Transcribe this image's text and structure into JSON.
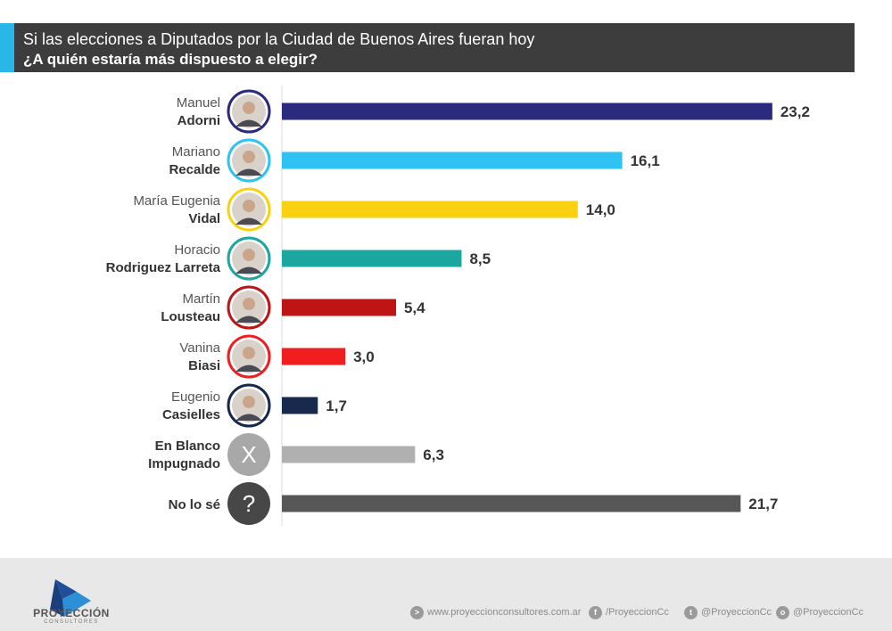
{
  "header": {
    "line1": "Si las elecciones a Diputados por la Ciudad de Buenos Aires fueran hoy",
    "line2": "¿A quién estaría más dispuesto a elegir?",
    "accent_color": "#29b6e8",
    "background_color": "#3d3d3d"
  },
  "chart_data": {
    "type": "bar",
    "orientation": "horizontal",
    "title": "Si las elecciones a Diputados por la Ciudad de Buenos Aires fueran hoy — ¿A quién estaría más dispuesto a elegir?",
    "xlabel": "",
    "ylabel": "",
    "xlim": [
      0,
      25
    ],
    "grid": false,
    "categories": [
      {
        "first": "Manuel",
        "last": "Adorni",
        "value": 23.2,
        "label": "23,2",
        "color": "#2a2a7e",
        "ring": "#2a2a7e",
        "icon": "avatar-adorni-icon"
      },
      {
        "first": "Mariano",
        "last": "Recalde",
        "value": 16.1,
        "label": "16,1",
        "color": "#2ec3f2",
        "ring": "#2ec3f2",
        "icon": "avatar-recalde-icon"
      },
      {
        "first": "María Eugenia",
        "last": "Vidal",
        "value": 14.0,
        "label": "14,0",
        "color": "#fad110",
        "ring": "#fad110",
        "icon": "avatar-vidal-icon"
      },
      {
        "first": "Horacio",
        "last": "Rodriguez Larreta",
        "value": 8.5,
        "label": "8,5",
        "color": "#1ba6a0",
        "ring": "#1ba6a0",
        "icon": "avatar-larreta-icon"
      },
      {
        "first": "Martín",
        "last": "Lousteau",
        "value": 5.4,
        "label": "5,4",
        "color": "#be1414",
        "ring": "#be1414",
        "icon": "avatar-lousteau-icon"
      },
      {
        "first": "Vanina",
        "last": "Biasi",
        "value": 3.0,
        "label": "3,0",
        "color": "#f01e1e",
        "ring": "#f01e1e",
        "icon": "avatar-biasi-icon"
      },
      {
        "first": "Eugenio",
        "last": "Casielles",
        "value": 1.7,
        "label": "1,7",
        "color": "#17294c",
        "ring": "#17294c",
        "icon": "avatar-casielles-icon"
      },
      {
        "first": "En Blanco",
        "last": "Impugnado",
        "value": 6.3,
        "label": "6,3",
        "color": "#b0b0b0",
        "ring": "#a8a8a8",
        "icon": "x-icon",
        "symbol": "X",
        "first_bold": true
      },
      {
        "first": "",
        "last": "No lo sé",
        "value": 21.7,
        "label": "21,7",
        "color": "#575757",
        "ring": "#474747",
        "icon": "question-icon",
        "symbol": "?"
      }
    ]
  },
  "footer": {
    "brand": "PROYECCIÓN",
    "brand_sub": "CONSULTORES",
    "website": "www.proyeccionconsultores.com.ar",
    "facebook": "/ProyeccionCc",
    "twitter": "@ProyeccionCc",
    "instagram": "@ProyeccionCc",
    "icons": {
      "website": ">",
      "facebook": "f",
      "twitter": "t",
      "instagram": "o"
    }
  }
}
